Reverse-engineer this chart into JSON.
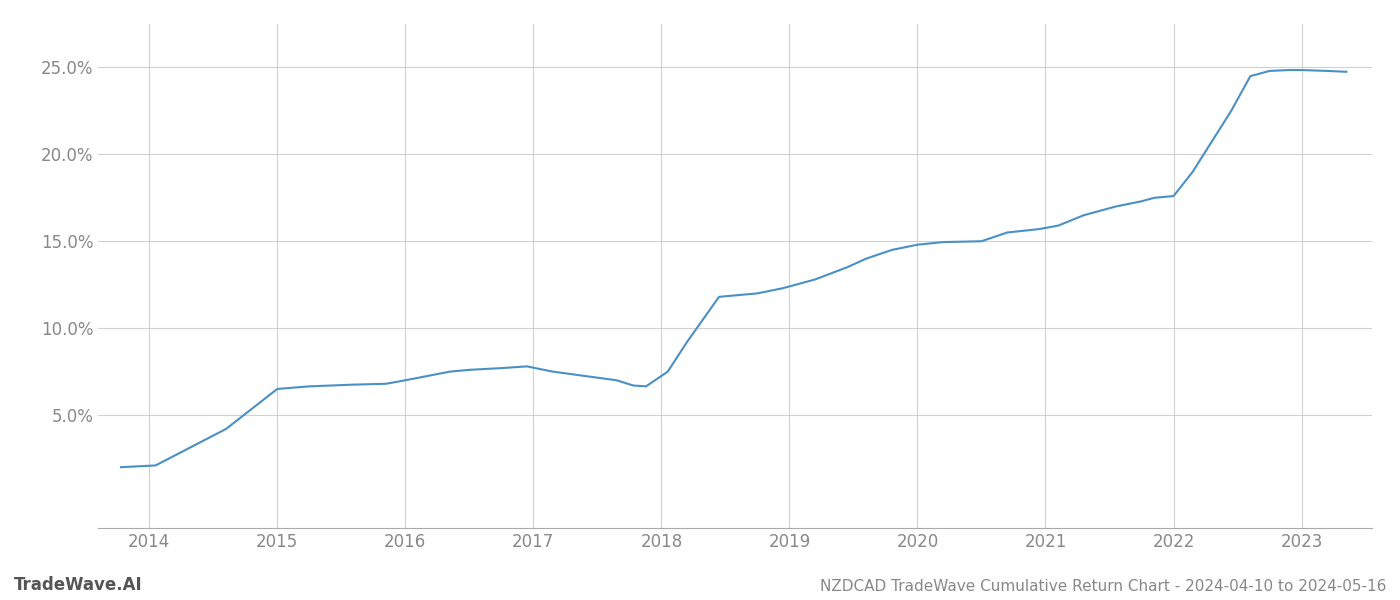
{
  "x_values": [
    2013.78,
    2014.05,
    2014.6,
    2015.0,
    2015.25,
    2015.6,
    2015.85,
    2016.0,
    2016.35,
    2016.5,
    2016.75,
    2016.95,
    2017.15,
    2017.45,
    2017.65,
    2017.78,
    2017.88,
    2018.05,
    2018.2,
    2018.45,
    2018.75,
    2018.95,
    2019.2,
    2019.45,
    2019.6,
    2019.8,
    2020.0,
    2020.2,
    2020.5,
    2020.7,
    2020.95,
    2021.1,
    2021.3,
    2021.55,
    2021.75,
    2021.85,
    2022.0,
    2022.15,
    2022.45,
    2022.6,
    2022.75,
    2022.9,
    2023.0,
    2023.2,
    2023.35
  ],
  "y_values": [
    2.0,
    2.1,
    4.2,
    6.5,
    6.65,
    6.75,
    6.8,
    7.0,
    7.5,
    7.6,
    7.7,
    7.8,
    7.5,
    7.2,
    7.0,
    6.7,
    6.65,
    7.5,
    9.2,
    11.8,
    12.0,
    12.3,
    12.8,
    13.5,
    14.0,
    14.5,
    14.8,
    14.95,
    15.0,
    15.5,
    15.7,
    15.9,
    16.5,
    17.0,
    17.3,
    17.5,
    17.6,
    19.0,
    22.5,
    24.5,
    24.8,
    24.85,
    24.85,
    24.8,
    24.75
  ],
  "line_color": "#4a90c4",
  "line_width": 1.5,
  "title": "NZDCAD TradeWave Cumulative Return Chart - 2024-04-10 to 2024-05-16",
  "xlim": [
    2013.6,
    2023.55
  ],
  "ylim": [
    -1.5,
    27.5
  ],
  "yticks": [
    5.0,
    10.0,
    15.0,
    20.0,
    25.0
  ],
  "xticks": [
    2014,
    2015,
    2016,
    2017,
    2018,
    2019,
    2020,
    2021,
    2022,
    2023
  ],
  "watermark_text": "TradeWave.AI",
  "background_color": "#ffffff",
  "grid_color": "#cccccc",
  "tick_label_color": "#888888",
  "watermark_color": "#555555",
  "title_color": "#888888",
  "title_fontsize": 11,
  "tick_fontsize": 12,
  "watermark_fontsize": 12
}
